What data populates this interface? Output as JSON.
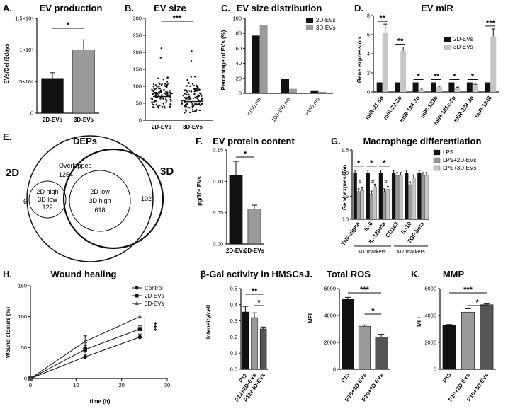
{
  "colors": {
    "black": "#111111",
    "gray": "#9a9a9a",
    "light": "#c6c6c6",
    "dark": "#555555"
  },
  "chart_data": [
    {
      "panel": "A.",
      "type": "bar",
      "title": "EV production",
      "ylabel": "EVs/Cell/2days",
      "categories": [
        "2D-EVs",
        "3D-EVs"
      ],
      "values": [
        5500000.0,
        10000000.0
      ],
      "errors": [
        900000.0,
        1600000.0
      ],
      "ylim": [
        0,
        15000000.0
      ],
      "yticks": [
        {
          "v": 0,
          "l": "0"
        },
        {
          "v": 5000000.0,
          "l": "5×10⁶"
        },
        {
          "v": 10000000.0,
          "l": "1×10⁷"
        },
        {
          "v": 15000000.0,
          "l": "1.5×10⁷"
        }
      ],
      "significance": [
        {
          "from": 0,
          "to": 1,
          "label": "*"
        }
      ]
    },
    {
      "panel": "B.",
      "type": "scatter",
      "title": "EV size",
      "categories": [
        "2D-EVs",
        "3D-EVs"
      ],
      "ylim": [
        0,
        300
      ],
      "yticks": [
        0,
        50,
        100,
        150,
        200,
        250,
        300
      ],
      "medians": [
        70,
        55
      ],
      "significance": [
        {
          "from": 0,
          "to": 1,
          "label": "***"
        }
      ]
    },
    {
      "panel": "C.",
      "type": "bar",
      "title": "EV size distribution",
      "ylabel": "Percentage of EVs (%)",
      "categories": [
        "<100 nm",
        "100-150 nm",
        ">150 nm"
      ],
      "series": [
        {
          "name": "2D-EVs",
          "values": [
            77,
            19,
            4
          ]
        },
        {
          "name": "3D-EVs",
          "values": [
            91,
            6,
            2
          ]
        }
      ],
      "ylim": [
        0,
        100
      ],
      "yticks": [
        0,
        20,
        40,
        60,
        80,
        100
      ]
    },
    {
      "panel": "D.",
      "type": "bar",
      "title": "EV miR",
      "ylabel": "Gene expression",
      "categories": [
        "miR-21-5p",
        "miR-22-3p",
        "miR-124-3p",
        "miR-133b",
        "miR-181c-5p",
        "miR-328-3p",
        "miR-1246"
      ],
      "series": [
        {
          "name": "2D-EVs",
          "values": [
            1,
            1,
            1,
            1,
            1,
            1,
            1
          ]
        },
        {
          "name": "3D-EVs",
          "values": [
            6.2,
            4.3,
            0.3,
            0.5,
            0.4,
            0.7,
            5.8
          ]
        }
      ],
      "errors": [
        0.9,
        0.4,
        0.1,
        0.1,
        0.1,
        0.1,
        0.8
      ],
      "ylim": [
        0,
        8
      ],
      "yticks": [
        0,
        2,
        4,
        6,
        8
      ],
      "significance": [
        "**",
        "**",
        "*",
        "**",
        "*",
        "*",
        "***"
      ]
    },
    {
      "panel": "F.",
      "type": "bar",
      "title": "EV protein content",
      "ylabel": "µg/10⁸ EVs",
      "categories": [
        "2D-EVs",
        "3D-EVs"
      ],
      "values": [
        0.11,
        0.056
      ],
      "errors": [
        0.022,
        0.006
      ],
      "ylim": [
        0,
        0.15
      ],
      "yticks": [
        {
          "v": 0,
          "l": "0.00"
        },
        {
          "v": 0.05,
          "l": "0.05"
        },
        {
          "v": 0.1,
          "l": "0.10"
        },
        {
          "v": 0.15,
          "l": "0.15"
        }
      ],
      "significance": [
        {
          "from": 0,
          "to": 1,
          "label": "*"
        }
      ]
    },
    {
      "panel": "G.",
      "type": "bar",
      "title": "Macrophage differentiation",
      "ylabel": "Gene expression",
      "categories": [
        "TNF-alpha",
        "IL-6",
        "IL-12beta",
        "CD163",
        "IL-10",
        "TGF-beta"
      ],
      "series": [
        {
          "name": "LPS",
          "values": [
            1,
            1,
            1,
            1,
            1,
            1
          ]
        },
        {
          "name": "LPS+2D-EVs",
          "values": [
            0.6,
            0.55,
            0.6,
            0.95,
            0.75,
            0.95
          ]
        },
        {
          "name": "LPS+3D-EVs",
          "values": [
            0.62,
            0.7,
            0.65,
            0.95,
            0.9,
            0.95
          ]
        }
      ],
      "ylim": [
        0,
        1.5
      ],
      "yticks": [
        {
          "v": 0,
          "l": "0.0"
        },
        {
          "v": 0.5,
          "l": "0.5"
        },
        {
          "v": 1,
          "l": "1.0"
        },
        {
          "v": 1.5,
          "l": "1.5"
        }
      ],
      "significance": [
        "*",
        "*",
        "*"
      ],
      "hash": "#",
      "groups": [
        "M1 markers",
        "M2 markers"
      ]
    },
    {
      "panel": "H.",
      "type": "line",
      "title": "Wound healing",
      "xlabel": "time (h)",
      "ylabel": "Wound closure (%)",
      "x": [
        0,
        12,
        24
      ],
      "series": [
        {
          "name": "Control",
          "values": [
            0,
            35,
            67
          ],
          "errors": [
            0,
            4,
            5
          ]
        },
        {
          "name": "2D-EVs",
          "values": [
            0,
            47,
            80
          ],
          "errors": [
            0,
            6,
            5
          ]
        },
        {
          "name": "3D-EVs",
          "values": [
            0,
            60,
            100
          ],
          "errors": [
            0,
            9,
            6
          ]
        }
      ],
      "xlim": [
        0,
        30
      ],
      "xticks": [
        0,
        10,
        20,
        30
      ],
      "ylim": [
        0,
        150
      ],
      "yticks": [
        0,
        50,
        100,
        150
      ],
      "significance": "***"
    },
    {
      "panel": "I.",
      "type": "bar",
      "title": "β-Gal activity in HMSCs",
      "ylabel": "Intensity/cell",
      "categories": [
        "P12",
        "P12+2D-EVs",
        "P12+3D-EVs"
      ],
      "values": [
        0.355,
        0.32,
        0.25
      ],
      "errors": [
        0.035,
        0.03,
        0.012
      ],
      "ylim": [
        0,
        0.5
      ],
      "yticks": [
        {
          "v": 0,
          "l": "0.0"
        },
        {
          "v": 0.1,
          "l": "0.1"
        },
        {
          "v": 0.2,
          "l": "0.2"
        },
        {
          "v": 0.3,
          "l": "0.3"
        },
        {
          "v": 0.4,
          "l": "0.4"
        },
        {
          "v": 0.5,
          "l": "0.5"
        }
      ],
      "significance": [
        {
          "from": 0,
          "to": 2,
          "label": "**"
        },
        {
          "from": 1,
          "to": 2,
          "label": "*"
        }
      ]
    },
    {
      "panel": "J.",
      "type": "bar",
      "title": "Total ROS",
      "ylabel": "MFI",
      "categories": [
        "P10",
        "P10+2D EVs",
        "P10+3D EVs"
      ],
      "values": [
        5200,
        3200,
        2400
      ],
      "errors": [
        150,
        100,
        200
      ],
      "ylim": [
        0,
        6000
      ],
      "yticks": [
        0,
        2000,
        4000,
        6000
      ],
      "significance": [
        {
          "from": 0,
          "to": 2,
          "label": "***"
        },
        {
          "from": 1,
          "to": 2,
          "label": "*"
        }
      ]
    },
    {
      "panel": "K.",
      "type": "bar",
      "title": "MMP",
      "ylabel": "MFI",
      "categories": [
        "P10",
        "P10+2D EVs",
        "P10+3D EVs"
      ],
      "values": [
        3250,
        4250,
        4800
      ],
      "errors": [
        80,
        250,
        60
      ],
      "ylim": [
        0,
        6000
      ],
      "yticks": [
        0,
        2000,
        4000,
        6000
      ],
      "significance": [
        {
          "from": 0,
          "to": 2,
          "label": "***"
        },
        {
          "from": 1,
          "to": 2,
          "label": "*"
        }
      ]
    }
  ],
  "venn": {
    "panel": "E.",
    "title": "DEPs",
    "left_label": "2D",
    "right_label": "3D",
    "overlapped_label": "Overlapped",
    "overlapped_value": "1254",
    "only_2d": "6",
    "only_3d": "102",
    "inner_left_l1": "2D high",
    "inner_left_l2": "3D low",
    "inner_left_value": "122",
    "inner_right_l1": "2D low",
    "inner_right_l2": "3D high",
    "inner_right_value": "618"
  }
}
